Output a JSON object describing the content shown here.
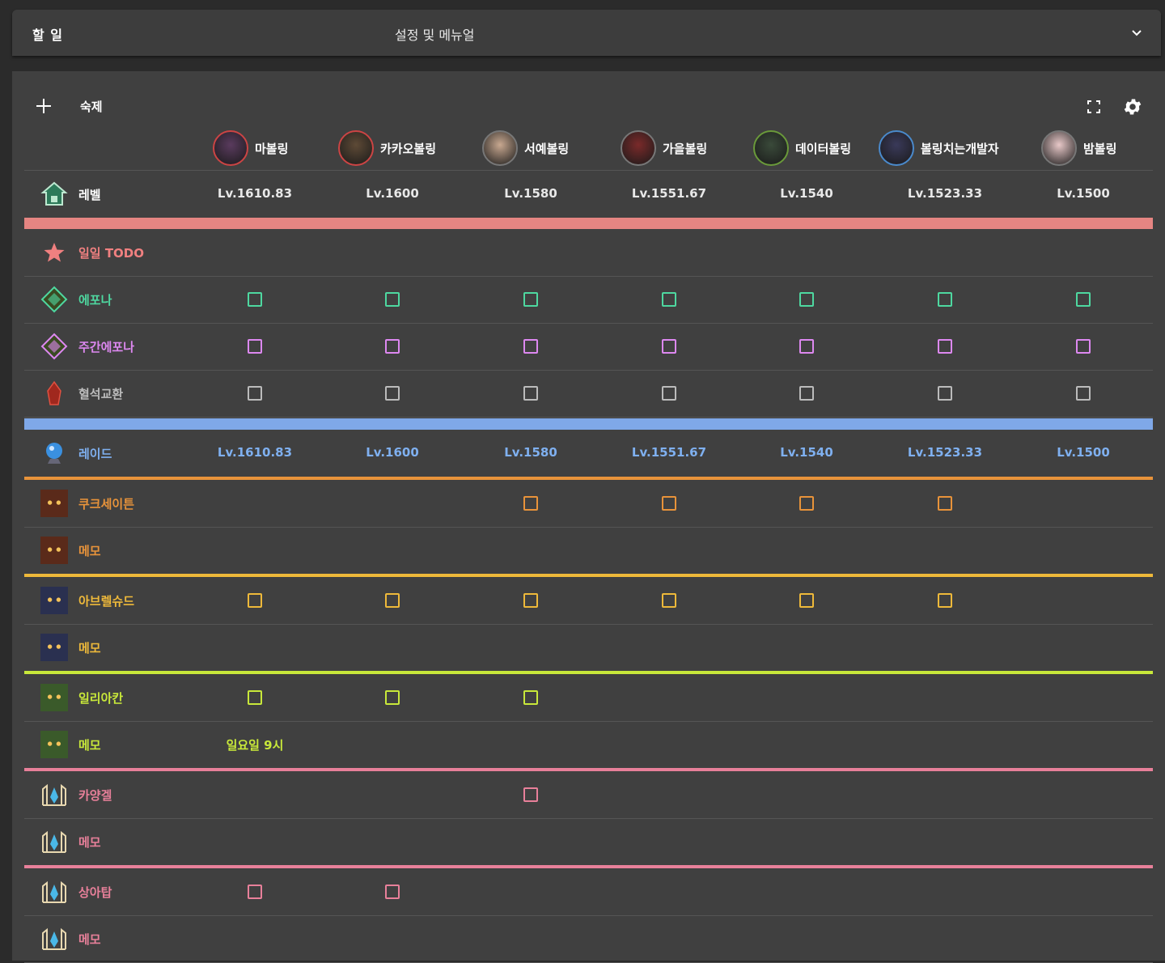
{
  "header": {
    "title": "할 일",
    "menu_label": "설정 및 메뉴얼"
  },
  "toolbar": {
    "homework_label": "숙제"
  },
  "characters": [
    {
      "name": "마볼링",
      "level": "Lv.1610.83"
    },
    {
      "name": "카카오볼링",
      "level": "Lv.1600"
    },
    {
      "name": "서예볼링",
      "level": "Lv.1580"
    },
    {
      "name": "가을볼링",
      "level": "Lv.1551.67"
    },
    {
      "name": "데이터볼링",
      "level": "Lv.1540"
    },
    {
      "name": "볼링치는개발자",
      "level": "Lv.1523.33"
    },
    {
      "name": "밤볼링",
      "level": "Lv.1500"
    }
  ],
  "rows": {
    "level": "레벨",
    "daily_todo": "일일 TODO",
    "epona": "에포나",
    "weekly_epona": "주간에포나",
    "bloodstone": "혈석교환",
    "raid": "레이드"
  },
  "raids": [
    {
      "name": "쿠크세이튼",
      "memo": "메모",
      "memo_values": [
        "",
        "",
        "",
        "",
        "",
        "",
        ""
      ],
      "checks": [
        false,
        false,
        true,
        true,
        true,
        true,
        false
      ],
      "color": "#e8933a",
      "icon": "kouku-icon"
    },
    {
      "name": "아브렐슈드",
      "memo": "메모",
      "memo_values": [
        "",
        "",
        "",
        "",
        "",
        "",
        ""
      ],
      "checks": [
        true,
        true,
        true,
        true,
        true,
        true,
        false
      ],
      "color": "#eeb93a",
      "icon": "abrelshud-icon"
    },
    {
      "name": "일리아칸",
      "memo": "메모",
      "memo_values": [
        "일요일 9시",
        "",
        "",
        "",
        "",
        "",
        ""
      ],
      "checks": [
        true,
        true,
        true,
        false,
        false,
        false,
        false
      ],
      "color": "#c8e83a",
      "icon": "illiakan-icon"
    },
    {
      "name": "카양겔",
      "memo": "메모",
      "memo_values": [
        "",
        "",
        "",
        "",
        "",
        "",
        ""
      ],
      "checks": [
        false,
        false,
        true,
        false,
        false,
        false,
        false
      ],
      "color": "#e8809a",
      "icon": "kayangel-icon"
    },
    {
      "name": "상아탑",
      "memo": "메모",
      "memo_values": [
        "",
        "",
        "",
        "",
        "",
        "",
        ""
      ],
      "checks": [
        true,
        true,
        false,
        false,
        false,
        false,
        false
      ],
      "color": "#e8809a",
      "icon": "ivory-tower-icon"
    }
  ],
  "colors": {
    "level_bar": "#e58582",
    "raid_bar": "#7fa8e8",
    "todo": "#f08080",
    "epona": "#4ed8a0",
    "weekly_epona": "#dd88f0",
    "bloodstone": "#bbbbbb",
    "raid_level": "#7fb0f0"
  }
}
